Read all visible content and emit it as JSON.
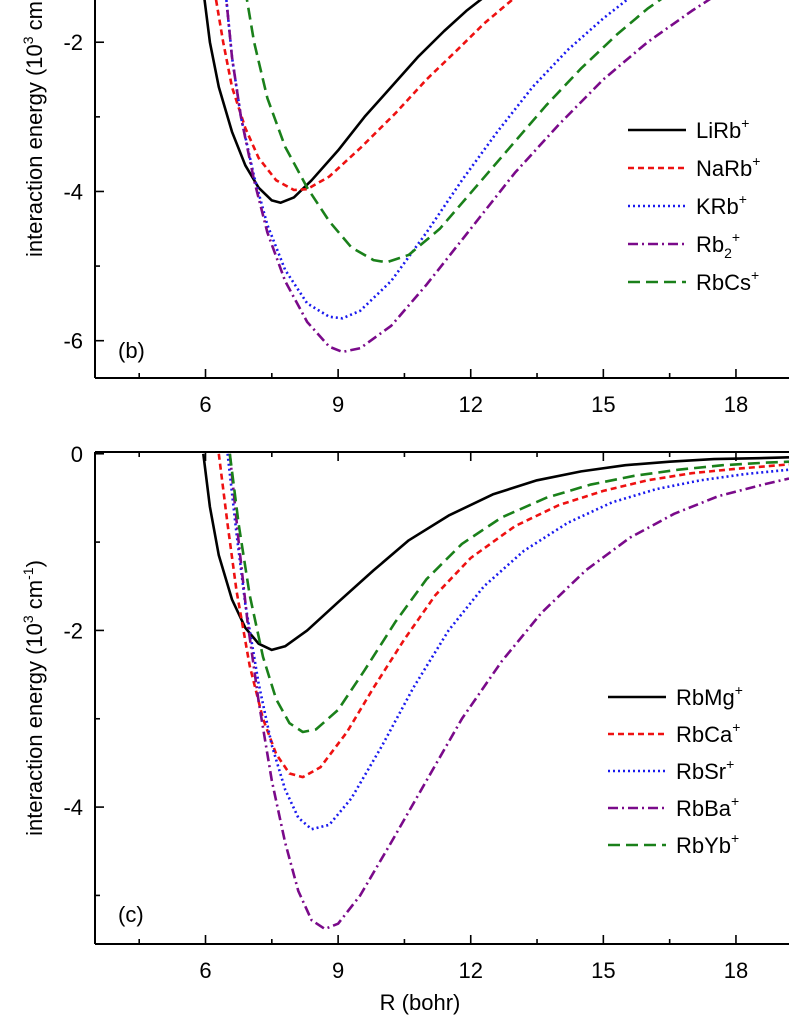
{
  "chart_data": [
    {
      "type": "line",
      "panel_label": "(b)",
      "ylabel": "interaction energy (10",
      "ylabel_sup": "3",
      "ylabel_tail": " cm",
      "xlabel": "",
      "xlim": [
        3.5,
        19.2
      ],
      "ylim": [
        -6.5,
        -1.3
      ],
      "x_ticks": [
        6,
        9,
        12,
        15,
        18
      ],
      "x_tick_labels": [
        "6",
        "9",
        "12",
        "15",
        "18"
      ],
      "y_ticks": [
        -2,
        -4,
        -6
      ],
      "y_tick_labels": [
        "-2",
        "-4",
        "-6"
      ],
      "legend_position": "right",
      "series": [
        {
          "name": "LiRb",
          "sub": "",
          "sup": "+",
          "color": "#000000",
          "dash": "solid",
          "points": [
            [
              5.95,
              -1.3
            ],
            [
              6.1,
              -2.0
            ],
            [
              6.3,
              -2.6
            ],
            [
              6.6,
              -3.2
            ],
            [
              6.9,
              -3.65
            ],
            [
              7.2,
              -3.95
            ],
            [
              7.5,
              -4.12
            ],
            [
              7.7,
              -4.15
            ],
            [
              8.0,
              -4.08
            ],
            [
              8.4,
              -3.85
            ],
            [
              9.0,
              -3.45
            ],
            [
              9.6,
              -3.0
            ],
            [
              10.2,
              -2.6
            ],
            [
              10.8,
              -2.2
            ],
            [
              11.4,
              -1.85
            ],
            [
              11.9,
              -1.58
            ],
            [
              12.4,
              -1.35
            ],
            [
              12.6,
              -1.3
            ]
          ]
        },
        {
          "name": "NaRb",
          "sub": "",
          "sup": "+",
          "color": "#ee1111",
          "dash": "6 4",
          "points": [
            [
              6.2,
              -1.3
            ],
            [
              6.4,
              -2.0
            ],
            [
              6.6,
              -2.6
            ],
            [
              6.9,
              -3.15
            ],
            [
              7.2,
              -3.55
            ],
            [
              7.6,
              -3.85
            ],
            [
              8.0,
              -3.98
            ],
            [
              8.3,
              -3.97
            ],
            [
              8.8,
              -3.8
            ],
            [
              9.5,
              -3.42
            ],
            [
              10.3,
              -2.95
            ],
            [
              11.0,
              -2.5
            ],
            [
              11.7,
              -2.1
            ],
            [
              12.3,
              -1.75
            ],
            [
              12.9,
              -1.45
            ],
            [
              13.2,
              -1.3
            ]
          ]
        },
        {
          "name": "KRb",
          "sub": "",
          "sup": "+",
          "color": "#1a1aee",
          "dash": "2 3",
          "points": [
            [
              6.45,
              -1.3
            ],
            [
              6.6,
              -2.2
            ],
            [
              6.8,
              -3.0
            ],
            [
              7.1,
              -3.8
            ],
            [
              7.4,
              -4.45
            ],
            [
              7.8,
              -5.05
            ],
            [
              8.3,
              -5.5
            ],
            [
              8.8,
              -5.68
            ],
            [
              9.1,
              -5.7
            ],
            [
              9.5,
              -5.6
            ],
            [
              10.2,
              -5.2
            ],
            [
              11.0,
              -4.55
            ],
            [
              11.8,
              -3.85
            ],
            [
              12.6,
              -3.2
            ],
            [
              13.4,
              -2.6
            ],
            [
              14.2,
              -2.1
            ],
            [
              15.0,
              -1.68
            ],
            [
              15.6,
              -1.4
            ],
            [
              15.8,
              -1.3
            ]
          ]
        },
        {
          "name": "Rb",
          "sub": "2",
          "sup": "+",
          "color": "#7a0a8a",
          "dash": "10 4 2 4",
          "points": [
            [
              6.45,
              -1.3
            ],
            [
              6.6,
              -2.2
            ],
            [
              6.8,
              -3.0
            ],
            [
              7.1,
              -3.85
            ],
            [
              7.4,
              -4.55
            ],
            [
              7.8,
              -5.2
            ],
            [
              8.3,
              -5.75
            ],
            [
              8.8,
              -6.08
            ],
            [
              9.1,
              -6.15
            ],
            [
              9.5,
              -6.1
            ],
            [
              10.2,
              -5.8
            ],
            [
              11.0,
              -5.25
            ],
            [
              12.0,
              -4.5
            ],
            [
              13.0,
              -3.75
            ],
            [
              14.0,
              -3.1
            ],
            [
              15.0,
              -2.5
            ],
            [
              16.0,
              -2.0
            ],
            [
              17.0,
              -1.58
            ],
            [
              17.6,
              -1.35
            ],
            [
              17.7,
              -1.3
            ]
          ]
        },
        {
          "name": "RbCs",
          "sub": "",
          "sup": "+",
          "color": "#1a801a",
          "dash": "12 6",
          "points": [
            [
              6.9,
              -1.3
            ],
            [
              7.1,
              -2.0
            ],
            [
              7.4,
              -2.75
            ],
            [
              7.8,
              -3.4
            ],
            [
              8.3,
              -3.95
            ],
            [
              8.8,
              -4.4
            ],
            [
              9.3,
              -4.75
            ],
            [
              9.8,
              -4.92
            ],
            [
              10.1,
              -4.95
            ],
            [
              10.6,
              -4.85
            ],
            [
              11.3,
              -4.5
            ],
            [
              12.1,
              -3.95
            ],
            [
              12.9,
              -3.4
            ],
            [
              13.7,
              -2.85
            ],
            [
              14.5,
              -2.35
            ],
            [
              15.3,
              -1.9
            ],
            [
              16.0,
              -1.55
            ],
            [
              16.6,
              -1.3
            ]
          ]
        }
      ]
    },
    {
      "type": "line",
      "panel_label": "(c)",
      "ylabel": "interaction energy (10",
      "ylabel_sup": "3",
      "ylabel_tail": " cm",
      "ylabel_sup2": "-1",
      "ylabel_end": ")",
      "xlabel": "R (bohr)",
      "xlim": [
        3.5,
        19.2
      ],
      "ylim": [
        -5.55,
        0.02
      ],
      "x_ticks": [
        6,
        9,
        12,
        15,
        18
      ],
      "x_tick_labels": [
        "6",
        "9",
        "12",
        "15",
        "18"
      ],
      "y_ticks": [
        0,
        -2,
        -4
      ],
      "y_tick_labels": [
        "0",
        "-2",
        "-4"
      ],
      "legend_position": "right",
      "series": [
        {
          "name": "RbMg",
          "sub": "",
          "sup": "+",
          "color": "#000000",
          "dash": "solid",
          "points": [
            [
              5.95,
              0.0
            ],
            [
              6.1,
              -0.6
            ],
            [
              6.3,
              -1.15
            ],
            [
              6.6,
              -1.65
            ],
            [
              6.9,
              -1.97
            ],
            [
              7.2,
              -2.15
            ],
            [
              7.5,
              -2.22
            ],
            [
              7.8,
              -2.18
            ],
            [
              8.3,
              -2.0
            ],
            [
              9.0,
              -1.68
            ],
            [
              9.8,
              -1.32
            ],
            [
              10.6,
              -0.98
            ],
            [
              11.5,
              -0.7
            ],
            [
              12.5,
              -0.46
            ],
            [
              13.5,
              -0.3
            ],
            [
              14.5,
              -0.2
            ],
            [
              15.5,
              -0.13
            ],
            [
              16.5,
              -0.09
            ],
            [
              17.5,
              -0.06
            ],
            [
              18.5,
              -0.05
            ],
            [
              19.2,
              -0.04
            ]
          ]
        },
        {
          "name": "RbCa",
          "sub": "",
          "sup": "+",
          "color": "#ee1111",
          "dash": "6 4",
          "points": [
            [
              6.3,
              0.0
            ],
            [
              6.5,
              -0.8
            ],
            [
              6.7,
              -1.55
            ],
            [
              7.0,
              -2.4
            ],
            [
              7.3,
              -3.0
            ],
            [
              7.6,
              -3.4
            ],
            [
              7.9,
              -3.62
            ],
            [
              8.2,
              -3.66
            ],
            [
              8.6,
              -3.55
            ],
            [
              9.2,
              -3.15
            ],
            [
              9.8,
              -2.65
            ],
            [
              10.5,
              -2.1
            ],
            [
              11.2,
              -1.6
            ],
            [
              12.0,
              -1.18
            ],
            [
              13.0,
              -0.82
            ],
            [
              14.0,
              -0.58
            ],
            [
              15.0,
              -0.42
            ],
            [
              16.0,
              -0.3
            ],
            [
              17.0,
              -0.22
            ],
            [
              18.0,
              -0.17
            ],
            [
              19.2,
              -0.12
            ]
          ]
        },
        {
          "name": "RbSr",
          "sub": "",
          "sup": "+",
          "color": "#1a1aee",
          "dash": "2 3",
          "points": [
            [
              6.5,
              0.0
            ],
            [
              6.7,
              -0.9
            ],
            [
              6.9,
              -1.7
            ],
            [
              7.2,
              -2.6
            ],
            [
              7.5,
              -3.3
            ],
            [
              7.8,
              -3.8
            ],
            [
              8.1,
              -4.12
            ],
            [
              8.4,
              -4.25
            ],
            [
              8.8,
              -4.2
            ],
            [
              9.3,
              -3.9
            ],
            [
              10.0,
              -3.3
            ],
            [
              10.7,
              -2.65
            ],
            [
              11.5,
              -2.0
            ],
            [
              12.3,
              -1.5
            ],
            [
              13.2,
              -1.1
            ],
            [
              14.2,
              -0.78
            ],
            [
              15.2,
              -0.55
            ],
            [
              16.2,
              -0.4
            ],
            [
              17.2,
              -0.3
            ],
            [
              18.2,
              -0.23
            ],
            [
              19.2,
              -0.18
            ]
          ]
        },
        {
          "name": "RbBa",
          "sub": "",
          "sup": "+",
          "color": "#7a0a8a",
          "dash": "10 4 2 4",
          "points": [
            [
              6.55,
              0.0
            ],
            [
              6.75,
              -1.0
            ],
            [
              6.95,
              -1.9
            ],
            [
              7.2,
              -2.8
            ],
            [
              7.5,
              -3.7
            ],
            [
              7.8,
              -4.4
            ],
            [
              8.1,
              -4.95
            ],
            [
              8.4,
              -5.28
            ],
            [
              8.7,
              -5.38
            ],
            [
              9.0,
              -5.32
            ],
            [
              9.5,
              -5.0
            ],
            [
              10.2,
              -4.4
            ],
            [
              11.0,
              -3.7
            ],
            [
              11.8,
              -3.0
            ],
            [
              12.7,
              -2.35
            ],
            [
              13.6,
              -1.8
            ],
            [
              14.6,
              -1.32
            ],
            [
              15.6,
              -0.95
            ],
            [
              16.6,
              -0.68
            ],
            [
              17.6,
              -0.48
            ],
            [
              18.6,
              -0.35
            ],
            [
              19.2,
              -0.28
            ]
          ]
        },
        {
          "name": "RbYb",
          "sub": "",
          "sup": "+",
          "color": "#1a801a",
          "dash": "12 6",
          "points": [
            [
              6.55,
              0.0
            ],
            [
              6.75,
              -0.8
            ],
            [
              7.0,
              -1.6
            ],
            [
              7.3,
              -2.3
            ],
            [
              7.6,
              -2.78
            ],
            [
              7.9,
              -3.05
            ],
            [
              8.2,
              -3.15
            ],
            [
              8.5,
              -3.12
            ],
            [
              9.0,
              -2.9
            ],
            [
              9.6,
              -2.45
            ],
            [
              10.3,
              -1.9
            ],
            [
              11.0,
              -1.42
            ],
            [
              11.8,
              -1.02
            ],
            [
              12.7,
              -0.72
            ],
            [
              13.7,
              -0.5
            ],
            [
              14.7,
              -0.35
            ],
            [
              15.7,
              -0.25
            ],
            [
              16.7,
              -0.18
            ],
            [
              17.7,
              -0.13
            ],
            [
              18.7,
              -0.1
            ],
            [
              19.2,
              -0.09
            ]
          ]
        }
      ]
    }
  ]
}
